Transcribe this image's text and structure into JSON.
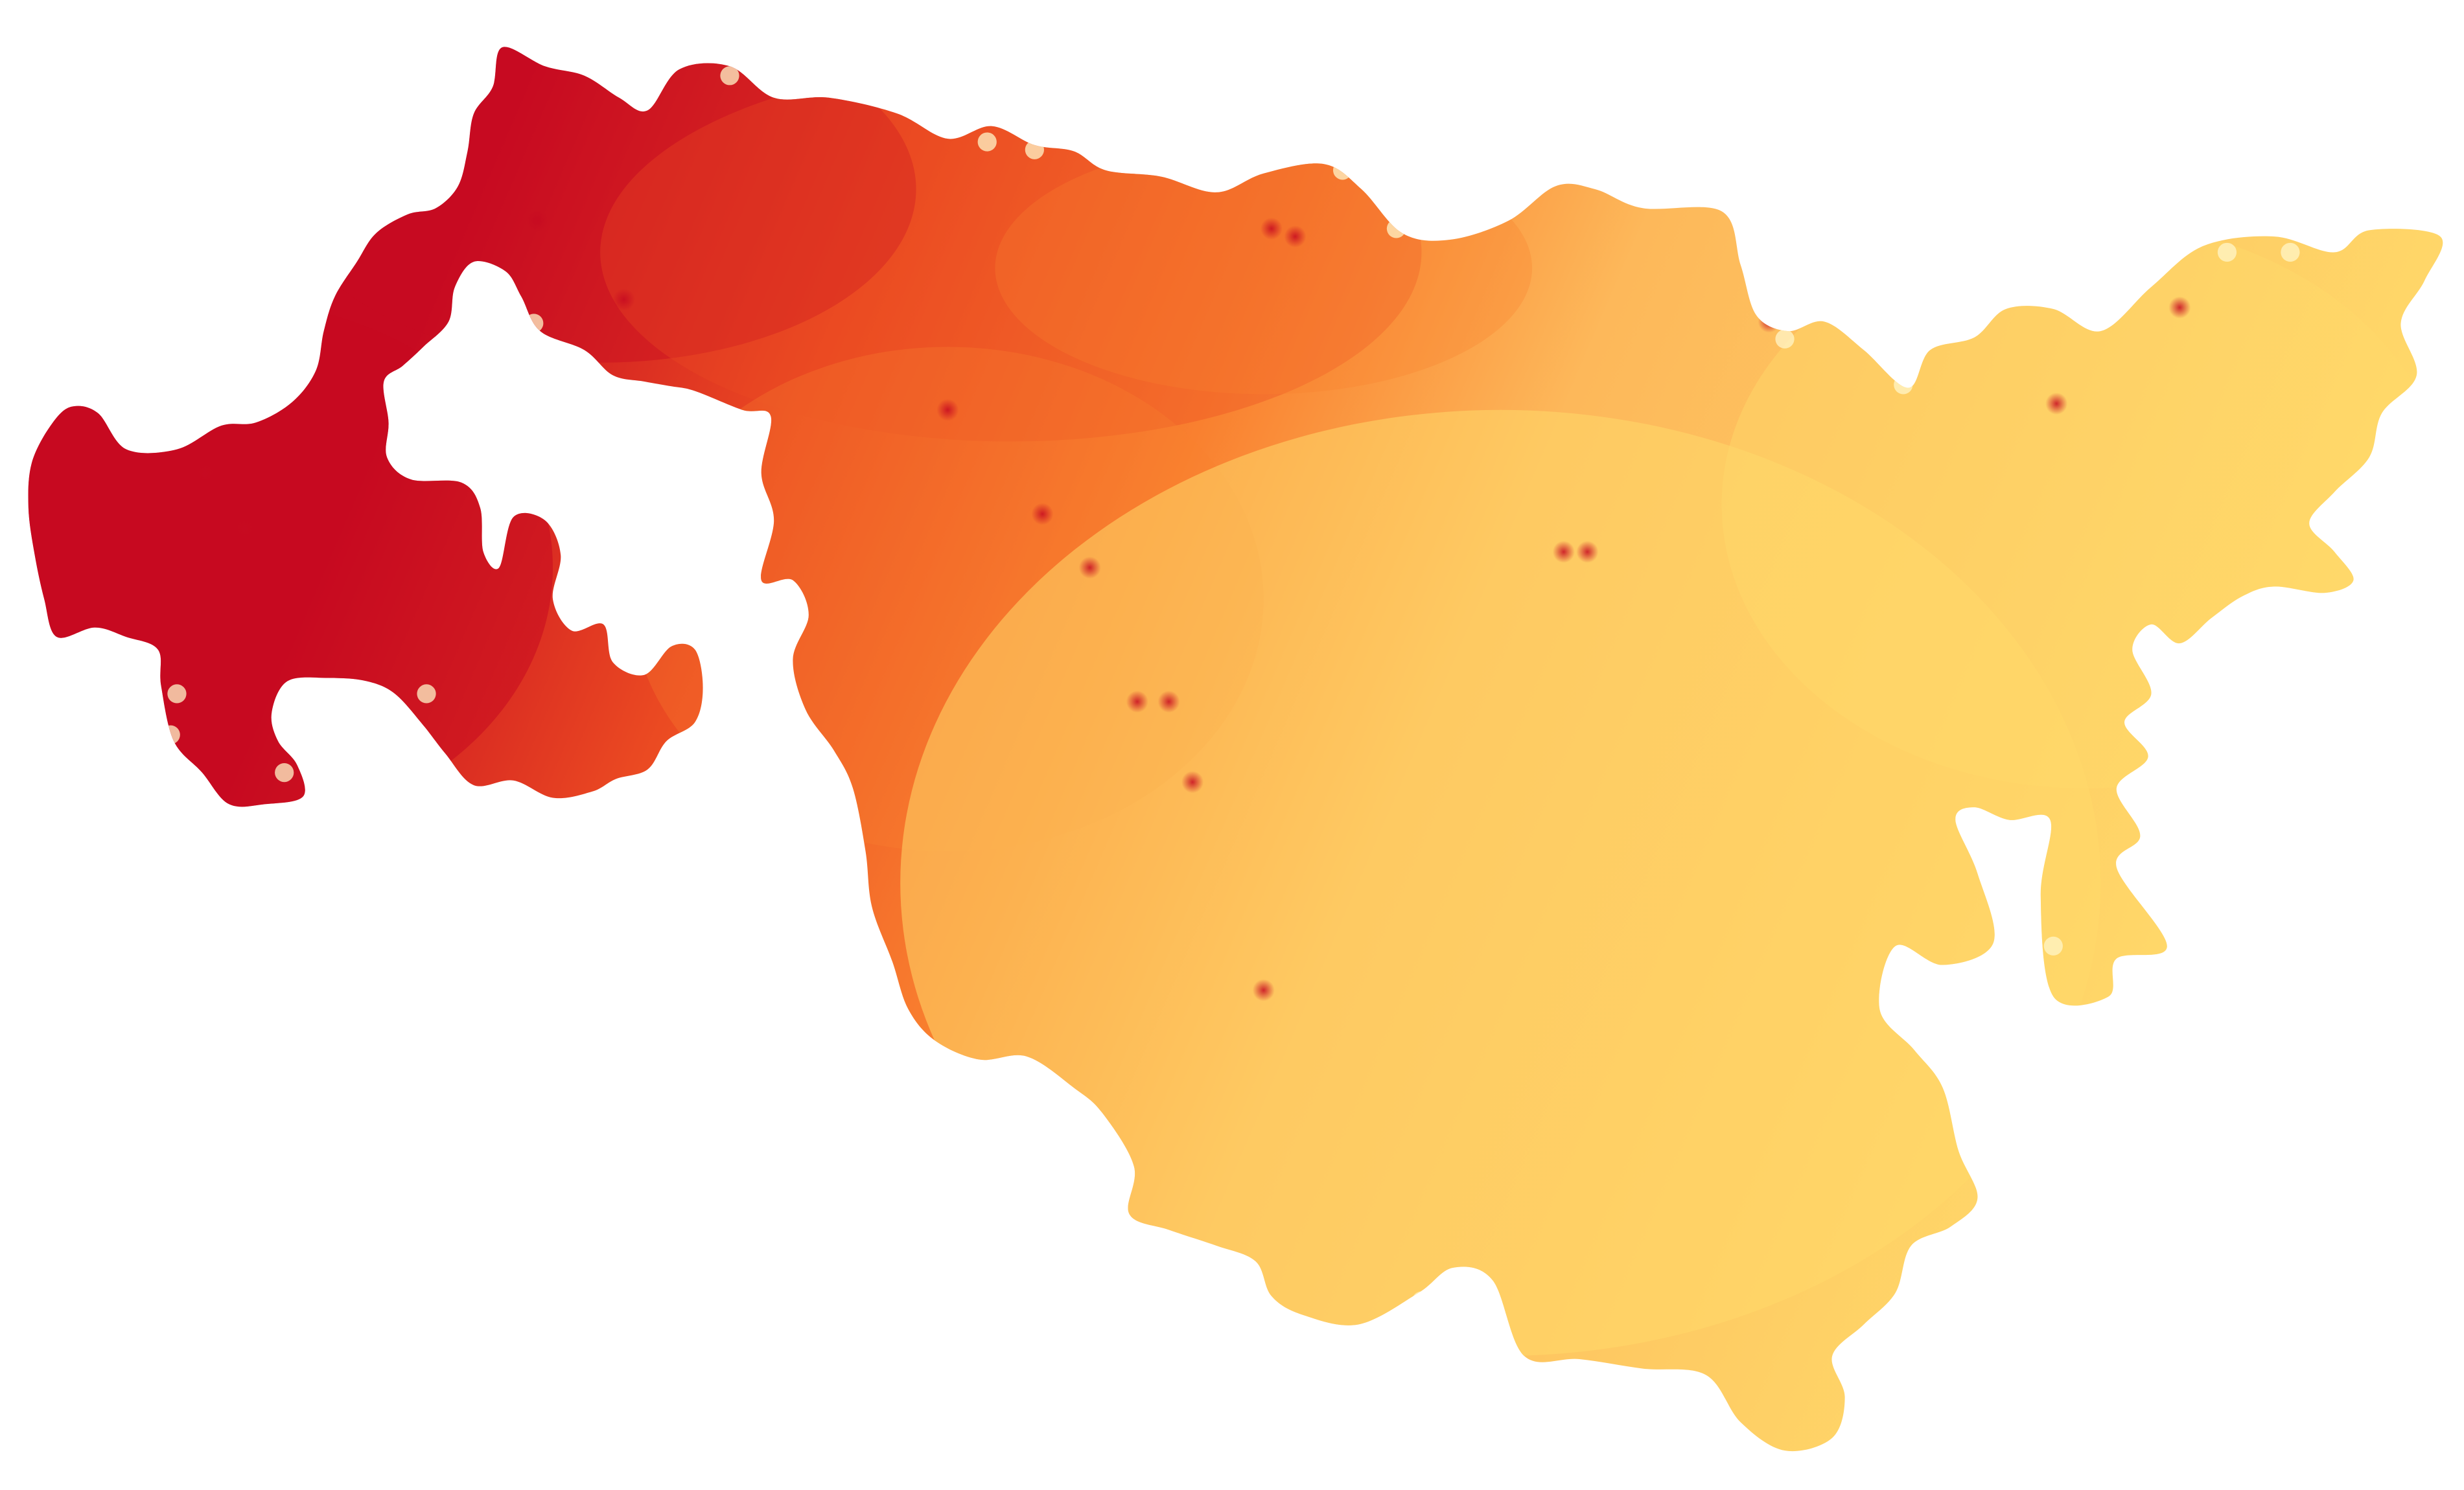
{
  "map": {
    "type": "choropleth-heatmap",
    "legend": null,
    "color_scale": {
      "low": "#FFD96A",
      "mid_low": "#FDB85A",
      "mid": "#F9802F",
      "mid_high": "#EB4A22",
      "high": "#C70A21",
      "highlight": "#FFF6C8"
    },
    "background": "#ffffff"
  }
}
